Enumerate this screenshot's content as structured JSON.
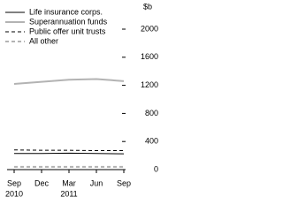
{
  "chart_data": {
    "type": "line",
    "y_label": "$b",
    "categories": [
      "Sep",
      "Dec",
      "Mar",
      "Jun",
      "Sep"
    ],
    "category_years": [
      "2010",
      null,
      "2011",
      null,
      null
    ],
    "series": [
      {
        "name": "Life insurance corps.",
        "color": "#000000",
        "dash": false,
        "values": [
          230,
          230,
          235,
          230,
          225
        ]
      },
      {
        "name": "Superannuation funds",
        "color": "#b3b3b3",
        "dash": false,
        "values": [
          1220,
          1250,
          1280,
          1290,
          1260
        ]
      },
      {
        "name": "Public offer unit trusts",
        "color": "#000000",
        "dash": true,
        "values": [
          280,
          275,
          275,
          270,
          270
        ]
      },
      {
        "name": "All other",
        "color": "#b3b3b3",
        "dash": true,
        "values": [
          40,
          40,
          40,
          40,
          40
        ]
      }
    ],
    "ylim": [
      0,
      2000
    ],
    "yticks": [
      0,
      400,
      800,
      1200,
      1600,
      2000
    ]
  }
}
